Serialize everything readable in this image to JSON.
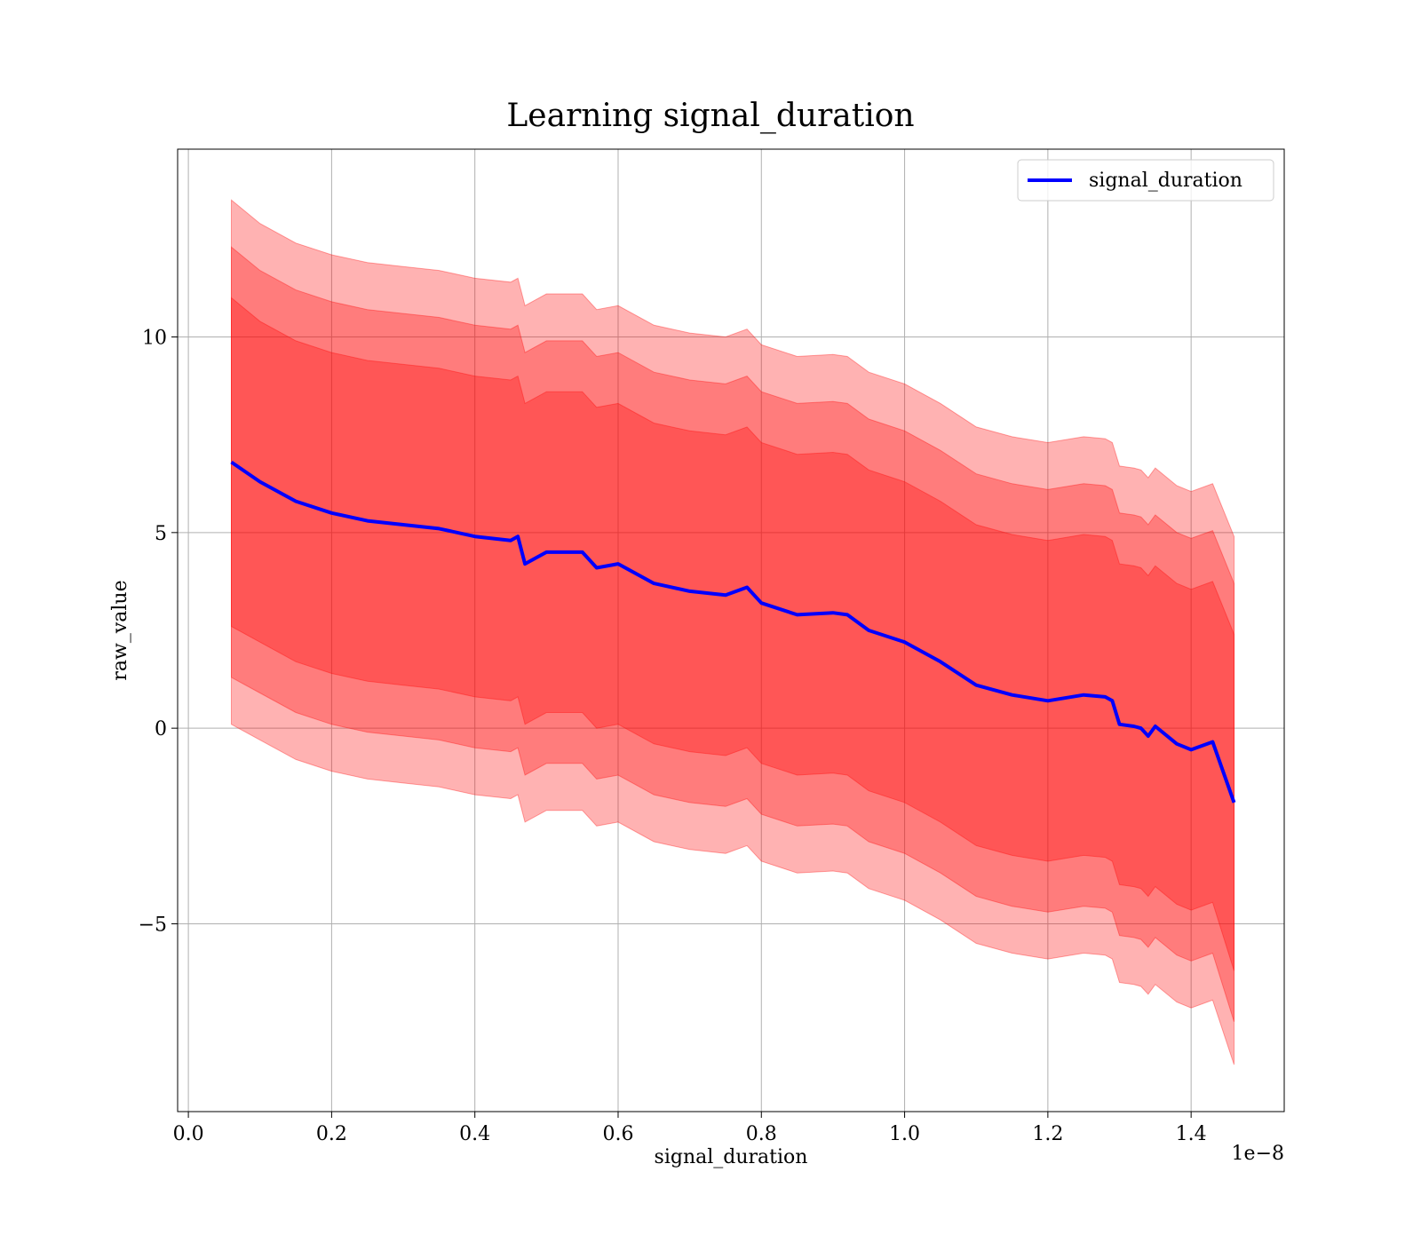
{
  "chart_data": {
    "type": "line",
    "title": "Learning signal_duration",
    "xlabel": "signal_duration",
    "ylabel": "raw_value",
    "x_offset_label": "1e−8",
    "xlim": [
      -0.015,
      1.53
    ],
    "ylim": [
      -9.8,
      14.8
    ],
    "x_ticks": [
      0.0,
      0.2,
      0.4,
      0.6,
      0.8,
      1.0,
      1.2,
      1.4
    ],
    "x_tick_labels": [
      "0.0",
      "0.2",
      "0.4",
      "0.6",
      "0.8",
      "1.0",
      "1.2",
      "1.4"
    ],
    "y_ticks": [
      -5,
      0,
      5,
      10
    ],
    "y_tick_labels": [
      "−5",
      "0",
      "5",
      "10"
    ],
    "grid": true,
    "legend_position": "top-right",
    "colors": {
      "line": "#0000ff",
      "band": "#ff0000"
    },
    "series": [
      {
        "name": "signal_duration",
        "x": [
          0.06,
          0.1,
          0.15,
          0.2,
          0.25,
          0.3,
          0.35,
          0.4,
          0.45,
          0.46,
          0.47,
          0.5,
          0.55,
          0.57,
          0.6,
          0.65,
          0.7,
          0.75,
          0.78,
          0.8,
          0.85,
          0.9,
          0.92,
          0.95,
          1.0,
          1.05,
          1.1,
          1.15,
          1.2,
          1.25,
          1.28,
          1.29,
          1.3,
          1.32,
          1.33,
          1.34,
          1.35,
          1.38,
          1.4,
          1.43,
          1.46
        ],
        "y": [
          6.8,
          6.3,
          5.8,
          5.5,
          5.3,
          5.2,
          5.1,
          4.9,
          4.8,
          4.9,
          4.2,
          4.5,
          4.5,
          4.1,
          4.2,
          3.7,
          3.5,
          3.4,
          3.6,
          3.2,
          2.9,
          2.95,
          2.9,
          2.5,
          2.2,
          1.7,
          1.1,
          0.85,
          0.7,
          0.85,
          0.8,
          0.7,
          0.1,
          0.05,
          0.0,
          -0.2,
          0.05,
          -0.4,
          -0.55,
          -0.35,
          -1.9
        ],
        "bands": [
          {
            "upper": [
              11.0,
              10.4,
              9.9,
              9.6,
              9.4,
              9.3,
              9.2,
              9.0,
              8.9,
              9.0,
              8.3,
              8.6,
              8.6,
              8.2,
              8.3,
              7.8,
              7.6,
              7.5,
              7.7,
              7.3,
              7.0,
              7.05,
              7.0,
              6.6,
              6.3,
              5.8,
              5.2,
              4.95,
              4.8,
              4.95,
              4.9,
              4.8,
              4.2,
              4.15,
              4.1,
              3.9,
              4.15,
              3.7,
              3.55,
              3.75,
              2.4
            ],
            "lower": [
              2.6,
              2.2,
              1.7,
              1.4,
              1.2,
              1.1,
              1.0,
              0.8,
              0.7,
              0.8,
              0.1,
              0.4,
              0.4,
              0.0,
              0.1,
              -0.4,
              -0.6,
              -0.7,
              -0.5,
              -0.9,
              -1.2,
              -1.15,
              -1.2,
              -1.6,
              -1.9,
              -2.4,
              -3.0,
              -3.25,
              -3.4,
              -3.25,
              -3.3,
              -3.4,
              -4.0,
              -4.05,
              -4.1,
              -4.3,
              -4.05,
              -4.5,
              -4.65,
              -4.45,
              -6.2
            ]
          },
          {
            "upper": [
              12.3,
              11.7,
              11.2,
              10.9,
              10.7,
              10.6,
              10.5,
              10.3,
              10.2,
              10.3,
              9.6,
              9.9,
              9.9,
              9.5,
              9.6,
              9.1,
              8.9,
              8.8,
              9.0,
              8.6,
              8.3,
              8.35,
              8.3,
              7.9,
              7.6,
              7.1,
              6.5,
              6.25,
              6.1,
              6.25,
              6.2,
              6.1,
              5.5,
              5.45,
              5.4,
              5.2,
              5.45,
              5.0,
              4.85,
              5.05,
              3.7
            ],
            "lower": [
              1.3,
              0.9,
              0.4,
              0.1,
              -0.1,
              -0.2,
              -0.3,
              -0.5,
              -0.6,
              -0.5,
              -1.2,
              -0.9,
              -0.9,
              -1.3,
              -1.2,
              -1.7,
              -1.9,
              -2.0,
              -1.8,
              -2.2,
              -2.5,
              -2.45,
              -2.5,
              -2.9,
              -3.2,
              -3.7,
              -4.3,
              -4.55,
              -4.7,
              -4.55,
              -4.6,
              -4.7,
              -5.3,
              -5.35,
              -5.4,
              -5.6,
              -5.35,
              -5.8,
              -5.95,
              -5.75,
              -7.5
            ]
          },
          {
            "upper": [
              13.5,
              12.9,
              12.4,
              12.1,
              11.9,
              11.8,
              11.7,
              11.5,
              11.4,
              11.5,
              10.8,
              11.1,
              11.1,
              10.7,
              10.8,
              10.3,
              10.1,
              10.0,
              10.2,
              9.8,
              9.5,
              9.55,
              9.5,
              9.1,
              8.8,
              8.3,
              7.7,
              7.45,
              7.3,
              7.45,
              7.4,
              7.3,
              6.7,
              6.65,
              6.6,
              6.4,
              6.65,
              6.2,
              6.05,
              6.25,
              4.9
            ],
            "lower": [
              0.1,
              -0.3,
              -0.8,
              -1.1,
              -1.3,
              -1.4,
              -1.5,
              -1.7,
              -1.8,
              -1.7,
              -2.4,
              -2.1,
              -2.1,
              -2.5,
              -2.4,
              -2.9,
              -3.1,
              -3.2,
              -3.0,
              -3.4,
              -3.7,
              -3.65,
              -3.7,
              -4.1,
              -4.4,
              -4.9,
              -5.5,
              -5.75,
              -5.9,
              -5.75,
              -5.8,
              -5.9,
              -6.5,
              -6.55,
              -6.6,
              -6.8,
              -6.55,
              -7.0,
              -7.15,
              -6.95,
              -8.6
            ]
          }
        ]
      }
    ]
  }
}
